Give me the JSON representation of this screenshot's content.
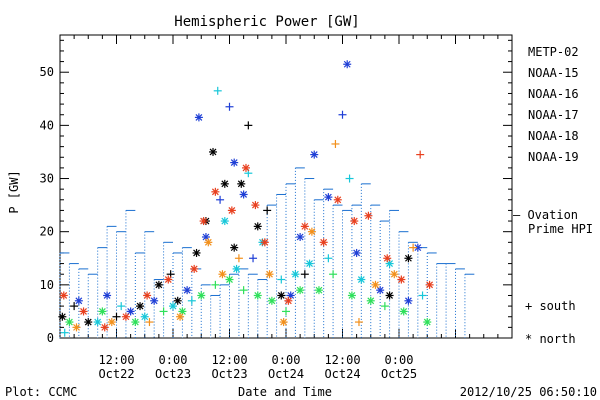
{
  "footer": {
    "left": "Plot: CCMC",
    "right": "2012/10/25 06:50:10"
  },
  "chart_data": {
    "type": "scatter",
    "title": "Hemispheric Power [GW]",
    "xlabel": "Date and Time",
    "ylabel": "P [GW]",
    "ylim": [
      0,
      57
    ],
    "yticks": [
      0,
      10,
      20,
      30,
      40,
      50
    ],
    "xlim_hours": [
      0,
      96
    ],
    "x_tick_labels": [
      {
        "hour": 12,
        "time": "12:00",
        "date": "Oct22"
      },
      {
        "hour": 24,
        "time": "0:00",
        "date": "Oct23"
      },
      {
        "hour": 36,
        "time": "12:00",
        "date": "Oct23"
      },
      {
        "hour": 48,
        "time": "0:00",
        "date": "Oct24"
      },
      {
        "hour": 60,
        "time": "12:00",
        "date": "Oct24"
      },
      {
        "hour": 72,
        "time": "0:00",
        "date": "Oct25"
      }
    ],
    "satellites": [
      {
        "name": "METP-02",
        "color": "#000000"
      },
      {
        "name": "NOAA-15",
        "color": "#1f3fd6"
      },
      {
        "name": "NOAA-16",
        "color": "#17c7d9"
      },
      {
        "name": "NOAA-17",
        "color": "#2fe05a"
      },
      {
        "name": "NOAA-18",
        "color": "#f2901c"
      },
      {
        "name": "NOAA-19",
        "color": "#e8401f"
      }
    ],
    "ovation": {
      "label_line1": "— Ovation",
      "label_line2": "Prime HPI",
      "color": "#1a6fd0",
      "x_hours": [
        0,
        2,
        4,
        6,
        8,
        10,
        12,
        14,
        16,
        18,
        20,
        22,
        24,
        26,
        28,
        30,
        32,
        34,
        36,
        38,
        40,
        42,
        44,
        46,
        48,
        50,
        52,
        54,
        56,
        58,
        60,
        62,
        64,
        66,
        68,
        70,
        72,
        74,
        76,
        78,
        80,
        82,
        84,
        86
      ],
      "values": [
        16,
        14,
        13,
        12,
        17,
        21,
        20,
        24,
        16,
        20,
        11,
        18,
        16,
        17,
        13,
        10,
        8,
        10,
        12,
        13,
        12,
        11,
        25,
        27,
        29,
        32,
        30,
        26,
        28,
        25,
        24,
        25,
        29,
        25,
        22,
        24,
        20,
        18,
        17,
        16,
        14,
        14,
        13,
        12
      ]
    },
    "markers": {
      "south": "+",
      "north": "*",
      "south_label": "+ south",
      "north_label": "* north"
    },
    "scatter_points": [
      {
        "sat": 0,
        "x": 0.5,
        "y": 4,
        "m": "*"
      },
      {
        "sat": 0,
        "x": 3,
        "y": 6,
        "m": "+"
      },
      {
        "sat": 0,
        "x": 6,
        "y": 3,
        "m": "*"
      },
      {
        "sat": 0,
        "x": 12,
        "y": 4,
        "m": "+"
      },
      {
        "sat": 0,
        "x": 17,
        "y": 6,
        "m": "*"
      },
      {
        "sat": 0,
        "x": 21,
        "y": 10,
        "m": "*"
      },
      {
        "sat": 0,
        "x": 23.5,
        "y": 12,
        "m": "+"
      },
      {
        "sat": 0,
        "x": 25,
        "y": 7,
        "m": "*"
      },
      {
        "sat": 0,
        "x": 29,
        "y": 16,
        "m": "*"
      },
      {
        "sat": 0,
        "x": 31,
        "y": 22,
        "m": "*"
      },
      {
        "sat": 0,
        "x": 32.5,
        "y": 35,
        "m": "*"
      },
      {
        "sat": 0,
        "x": 35,
        "y": 29,
        "m": "*"
      },
      {
        "sat": 0,
        "x": 37,
        "y": 17,
        "m": "*"
      },
      {
        "sat": 0,
        "x": 38.5,
        "y": 29,
        "m": "*"
      },
      {
        "sat": 0,
        "x": 40,
        "y": 40,
        "m": "+"
      },
      {
        "sat": 0,
        "x": 42,
        "y": 21,
        "m": "*"
      },
      {
        "sat": 0,
        "x": 44,
        "y": 24,
        "m": "+"
      },
      {
        "sat": 0,
        "x": 47,
        "y": 8,
        "m": "*"
      },
      {
        "sat": 0,
        "x": 52,
        "y": 12,
        "m": "+"
      },
      {
        "sat": 0,
        "x": 70,
        "y": 8,
        "m": "*"
      },
      {
        "sat": 0,
        "x": 74,
        "y": 15,
        "m": "*"
      },
      {
        "sat": 1,
        "x": 4,
        "y": 7,
        "m": "*"
      },
      {
        "sat": 1,
        "x": 10,
        "y": 8,
        "m": "*"
      },
      {
        "sat": 1,
        "x": 15,
        "y": 5,
        "m": "*"
      },
      {
        "sat": 1,
        "x": 20,
        "y": 7,
        "m": "*"
      },
      {
        "sat": 1,
        "x": 27,
        "y": 9,
        "m": "*"
      },
      {
        "sat": 1,
        "x": 29.5,
        "y": 41.5,
        "m": "*"
      },
      {
        "sat": 1,
        "x": 31,
        "y": 19,
        "m": "*"
      },
      {
        "sat": 1,
        "x": 34,
        "y": 26,
        "m": "+"
      },
      {
        "sat": 1,
        "x": 36,
        "y": 43.5,
        "m": "+"
      },
      {
        "sat": 1,
        "x": 37,
        "y": 33,
        "m": "*"
      },
      {
        "sat": 1,
        "x": 39,
        "y": 27,
        "m": "*"
      },
      {
        "sat": 1,
        "x": 41,
        "y": 15,
        "m": "+"
      },
      {
        "sat": 1,
        "x": 49,
        "y": 8,
        "m": "*"
      },
      {
        "sat": 1,
        "x": 51,
        "y": 19,
        "m": "*"
      },
      {
        "sat": 1,
        "x": 54,
        "y": 34.5,
        "m": "*"
      },
      {
        "sat": 1,
        "x": 57,
        "y": 26.5,
        "m": "*"
      },
      {
        "sat": 1,
        "x": 60,
        "y": 42,
        "m": "+"
      },
      {
        "sat": 1,
        "x": 61,
        "y": 51.5,
        "m": "*"
      },
      {
        "sat": 1,
        "x": 63,
        "y": 16,
        "m": "*"
      },
      {
        "sat": 1,
        "x": 68,
        "y": 9,
        "m": "*"
      },
      {
        "sat": 1,
        "x": 74,
        "y": 7,
        "m": "*"
      },
      {
        "sat": 1,
        "x": 76,
        "y": 17,
        "m": "*"
      },
      {
        "sat": 2,
        "x": 1,
        "y": 1,
        "m": "+"
      },
      {
        "sat": 2,
        "x": 8,
        "y": 3,
        "m": "*"
      },
      {
        "sat": 2,
        "x": 13,
        "y": 6,
        "m": "+"
      },
      {
        "sat": 2,
        "x": 18,
        "y": 4,
        "m": "*"
      },
      {
        "sat": 2,
        "x": 24,
        "y": 6,
        "m": "*"
      },
      {
        "sat": 2,
        "x": 28,
        "y": 7,
        "m": "+"
      },
      {
        "sat": 2,
        "x": 33.5,
        "y": 46.5,
        "m": "+"
      },
      {
        "sat": 2,
        "x": 35,
        "y": 22,
        "m": "*"
      },
      {
        "sat": 2,
        "x": 37.5,
        "y": 13,
        "m": "*"
      },
      {
        "sat": 2,
        "x": 40,
        "y": 31,
        "m": "+"
      },
      {
        "sat": 2,
        "x": 43,
        "y": 18,
        "m": "*"
      },
      {
        "sat": 2,
        "x": 47,
        "y": 11,
        "m": "+"
      },
      {
        "sat": 2,
        "x": 50,
        "y": 12,
        "m": "*"
      },
      {
        "sat": 2,
        "x": 53,
        "y": 14,
        "m": "*"
      },
      {
        "sat": 2,
        "x": 57,
        "y": 15,
        "m": "+"
      },
      {
        "sat": 2,
        "x": 61.5,
        "y": 30,
        "m": "+"
      },
      {
        "sat": 2,
        "x": 64,
        "y": 11,
        "m": "*"
      },
      {
        "sat": 2,
        "x": 70,
        "y": 14,
        "m": "*"
      },
      {
        "sat": 2,
        "x": 77,
        "y": 8,
        "m": "+"
      },
      {
        "sat": 3,
        "x": 2,
        "y": 3,
        "m": "*"
      },
      {
        "sat": 3,
        "x": 9,
        "y": 5,
        "m": "*"
      },
      {
        "sat": 3,
        "x": 16,
        "y": 3,
        "m": "*"
      },
      {
        "sat": 3,
        "x": 22,
        "y": 5,
        "m": "+"
      },
      {
        "sat": 3,
        "x": 26,
        "y": 5,
        "m": "*"
      },
      {
        "sat": 3,
        "x": 30,
        "y": 8,
        "m": "*"
      },
      {
        "sat": 3,
        "x": 33,
        "y": 10,
        "m": "+"
      },
      {
        "sat": 3,
        "x": 36,
        "y": 11,
        "m": "*"
      },
      {
        "sat": 3,
        "x": 39,
        "y": 9,
        "m": "+"
      },
      {
        "sat": 3,
        "x": 42,
        "y": 8,
        "m": "*"
      },
      {
        "sat": 3,
        "x": 45,
        "y": 7,
        "m": "*"
      },
      {
        "sat": 3,
        "x": 48,
        "y": 5,
        "m": "+"
      },
      {
        "sat": 3,
        "x": 51,
        "y": 9,
        "m": "*"
      },
      {
        "sat": 3,
        "x": 55,
        "y": 9,
        "m": "*"
      },
      {
        "sat": 3,
        "x": 58,
        "y": 12,
        "m": "+"
      },
      {
        "sat": 3,
        "x": 62,
        "y": 8,
        "m": "*"
      },
      {
        "sat": 3,
        "x": 66,
        "y": 7,
        "m": "*"
      },
      {
        "sat": 3,
        "x": 69,
        "y": 6,
        "m": "+"
      },
      {
        "sat": 3,
        "x": 73,
        "y": 5,
        "m": "*"
      },
      {
        "sat": 3,
        "x": 78,
        "y": 3,
        "m": "*"
      },
      {
        "sat": 4,
        "x": 3.5,
        "y": 2,
        "m": "*"
      },
      {
        "sat": 4,
        "x": 11,
        "y": 3,
        "m": "*"
      },
      {
        "sat": 4,
        "x": 19,
        "y": 3,
        "m": "+"
      },
      {
        "sat": 4,
        "x": 25.5,
        "y": 4,
        "m": "*"
      },
      {
        "sat": 4,
        "x": 31.5,
        "y": 18,
        "m": "*"
      },
      {
        "sat": 4,
        "x": 34.5,
        "y": 12,
        "m": "*"
      },
      {
        "sat": 4,
        "x": 38,
        "y": 15,
        "m": "+"
      },
      {
        "sat": 4,
        "x": 44.5,
        "y": 12,
        "m": "*"
      },
      {
        "sat": 4,
        "x": 47.5,
        "y": 3,
        "m": "*"
      },
      {
        "sat": 4,
        "x": 53.5,
        "y": 20,
        "m": "*"
      },
      {
        "sat": 4,
        "x": 58.5,
        "y": 36.5,
        "m": "+"
      },
      {
        "sat": 4,
        "x": 63.5,
        "y": 3,
        "m": "+"
      },
      {
        "sat": 4,
        "x": 67,
        "y": 10,
        "m": "*"
      },
      {
        "sat": 4,
        "x": 71,
        "y": 12,
        "m": "*"
      },
      {
        "sat": 4,
        "x": 75,
        "y": 17,
        "m": "+"
      },
      {
        "sat": 5,
        "x": 0.8,
        "y": 8,
        "m": "*"
      },
      {
        "sat": 5,
        "x": 5,
        "y": 5,
        "m": "*"
      },
      {
        "sat": 5,
        "x": 9.5,
        "y": 2,
        "m": "*"
      },
      {
        "sat": 5,
        "x": 14,
        "y": 4,
        "m": "*"
      },
      {
        "sat": 5,
        "x": 18.5,
        "y": 8,
        "m": "*"
      },
      {
        "sat": 5,
        "x": 23,
        "y": 11,
        "m": "*"
      },
      {
        "sat": 5,
        "x": 28.5,
        "y": 13,
        "m": "*"
      },
      {
        "sat": 5,
        "x": 30.5,
        "y": 22,
        "m": "*"
      },
      {
        "sat": 5,
        "x": 33,
        "y": 27.5,
        "m": "*"
      },
      {
        "sat": 5,
        "x": 36.5,
        "y": 24,
        "m": "*"
      },
      {
        "sat": 5,
        "x": 39.5,
        "y": 32,
        "m": "*"
      },
      {
        "sat": 5,
        "x": 41.5,
        "y": 25,
        "m": "*"
      },
      {
        "sat": 5,
        "x": 43.5,
        "y": 18,
        "m": "*"
      },
      {
        "sat": 5,
        "x": 48.5,
        "y": 7,
        "m": "*"
      },
      {
        "sat": 5,
        "x": 52,
        "y": 21,
        "m": "*"
      },
      {
        "sat": 5,
        "x": 56,
        "y": 18,
        "m": "*"
      },
      {
        "sat": 5,
        "x": 59,
        "y": 26,
        "m": "*"
      },
      {
        "sat": 5,
        "x": 62.5,
        "y": 22,
        "m": "*"
      },
      {
        "sat": 5,
        "x": 65.5,
        "y": 23,
        "m": "*"
      },
      {
        "sat": 5,
        "x": 69.5,
        "y": 15,
        "m": "*"
      },
      {
        "sat": 5,
        "x": 72.5,
        "y": 11,
        "m": "*"
      },
      {
        "sat": 5,
        "x": 76.5,
        "y": 34.5,
        "m": "+"
      },
      {
        "sat": 5,
        "x": 78.5,
        "y": 10,
        "m": "*"
      }
    ]
  }
}
